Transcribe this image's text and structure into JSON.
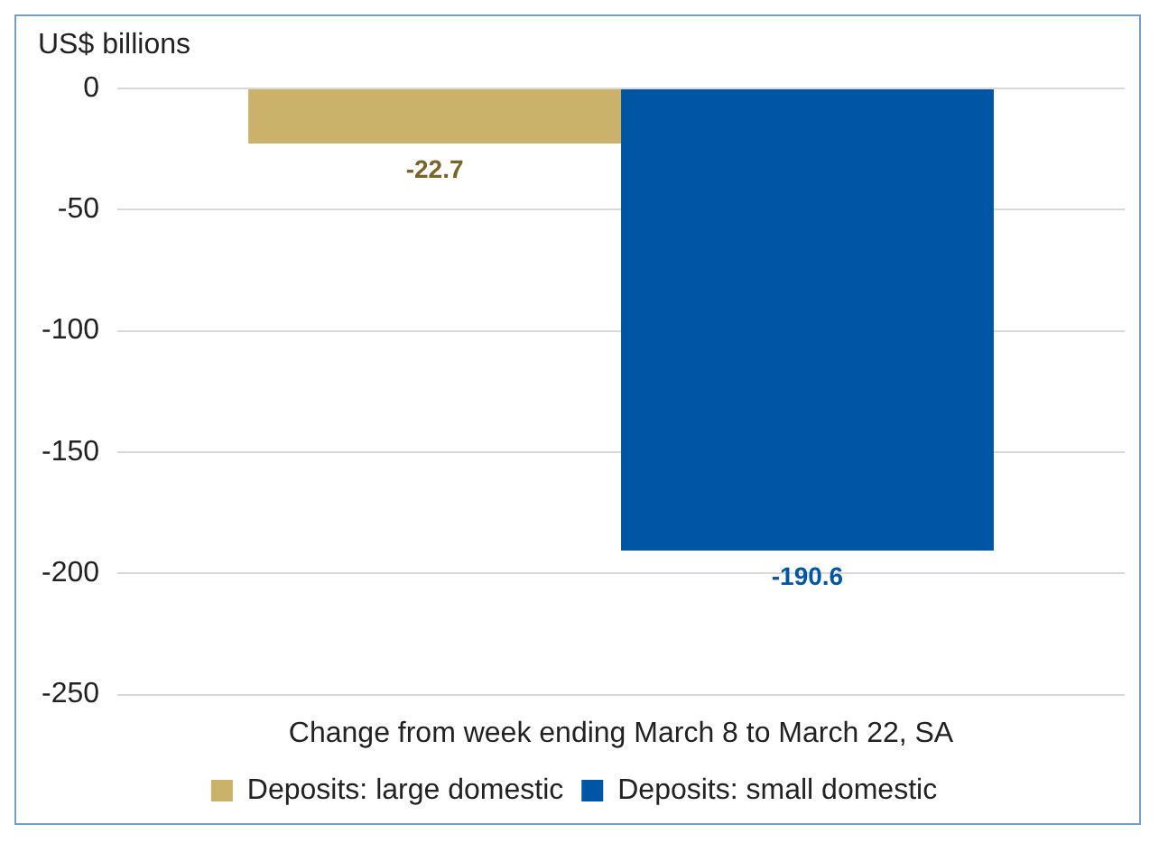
{
  "chart_data": {
    "type": "bar",
    "ylabel": "US$ billions",
    "xlabel": "Change from week ending March 8 to March 22, SA",
    "categories": [
      null
    ],
    "series": [
      {
        "name": "Deposits: large domestic",
        "color": "#cbb26a",
        "values": [
          -22.7
        ]
      },
      {
        "name": "Deposits: small domestic",
        "color": "#0055a4",
        "values": [
          -190.6
        ]
      }
    ],
    "ylim": [
      -250,
      0
    ],
    "yticks": [
      0,
      -50,
      -100,
      -150,
      -200,
      -250
    ],
    "grid": "y",
    "legend": "bottom",
    "data_labels": true
  }
}
